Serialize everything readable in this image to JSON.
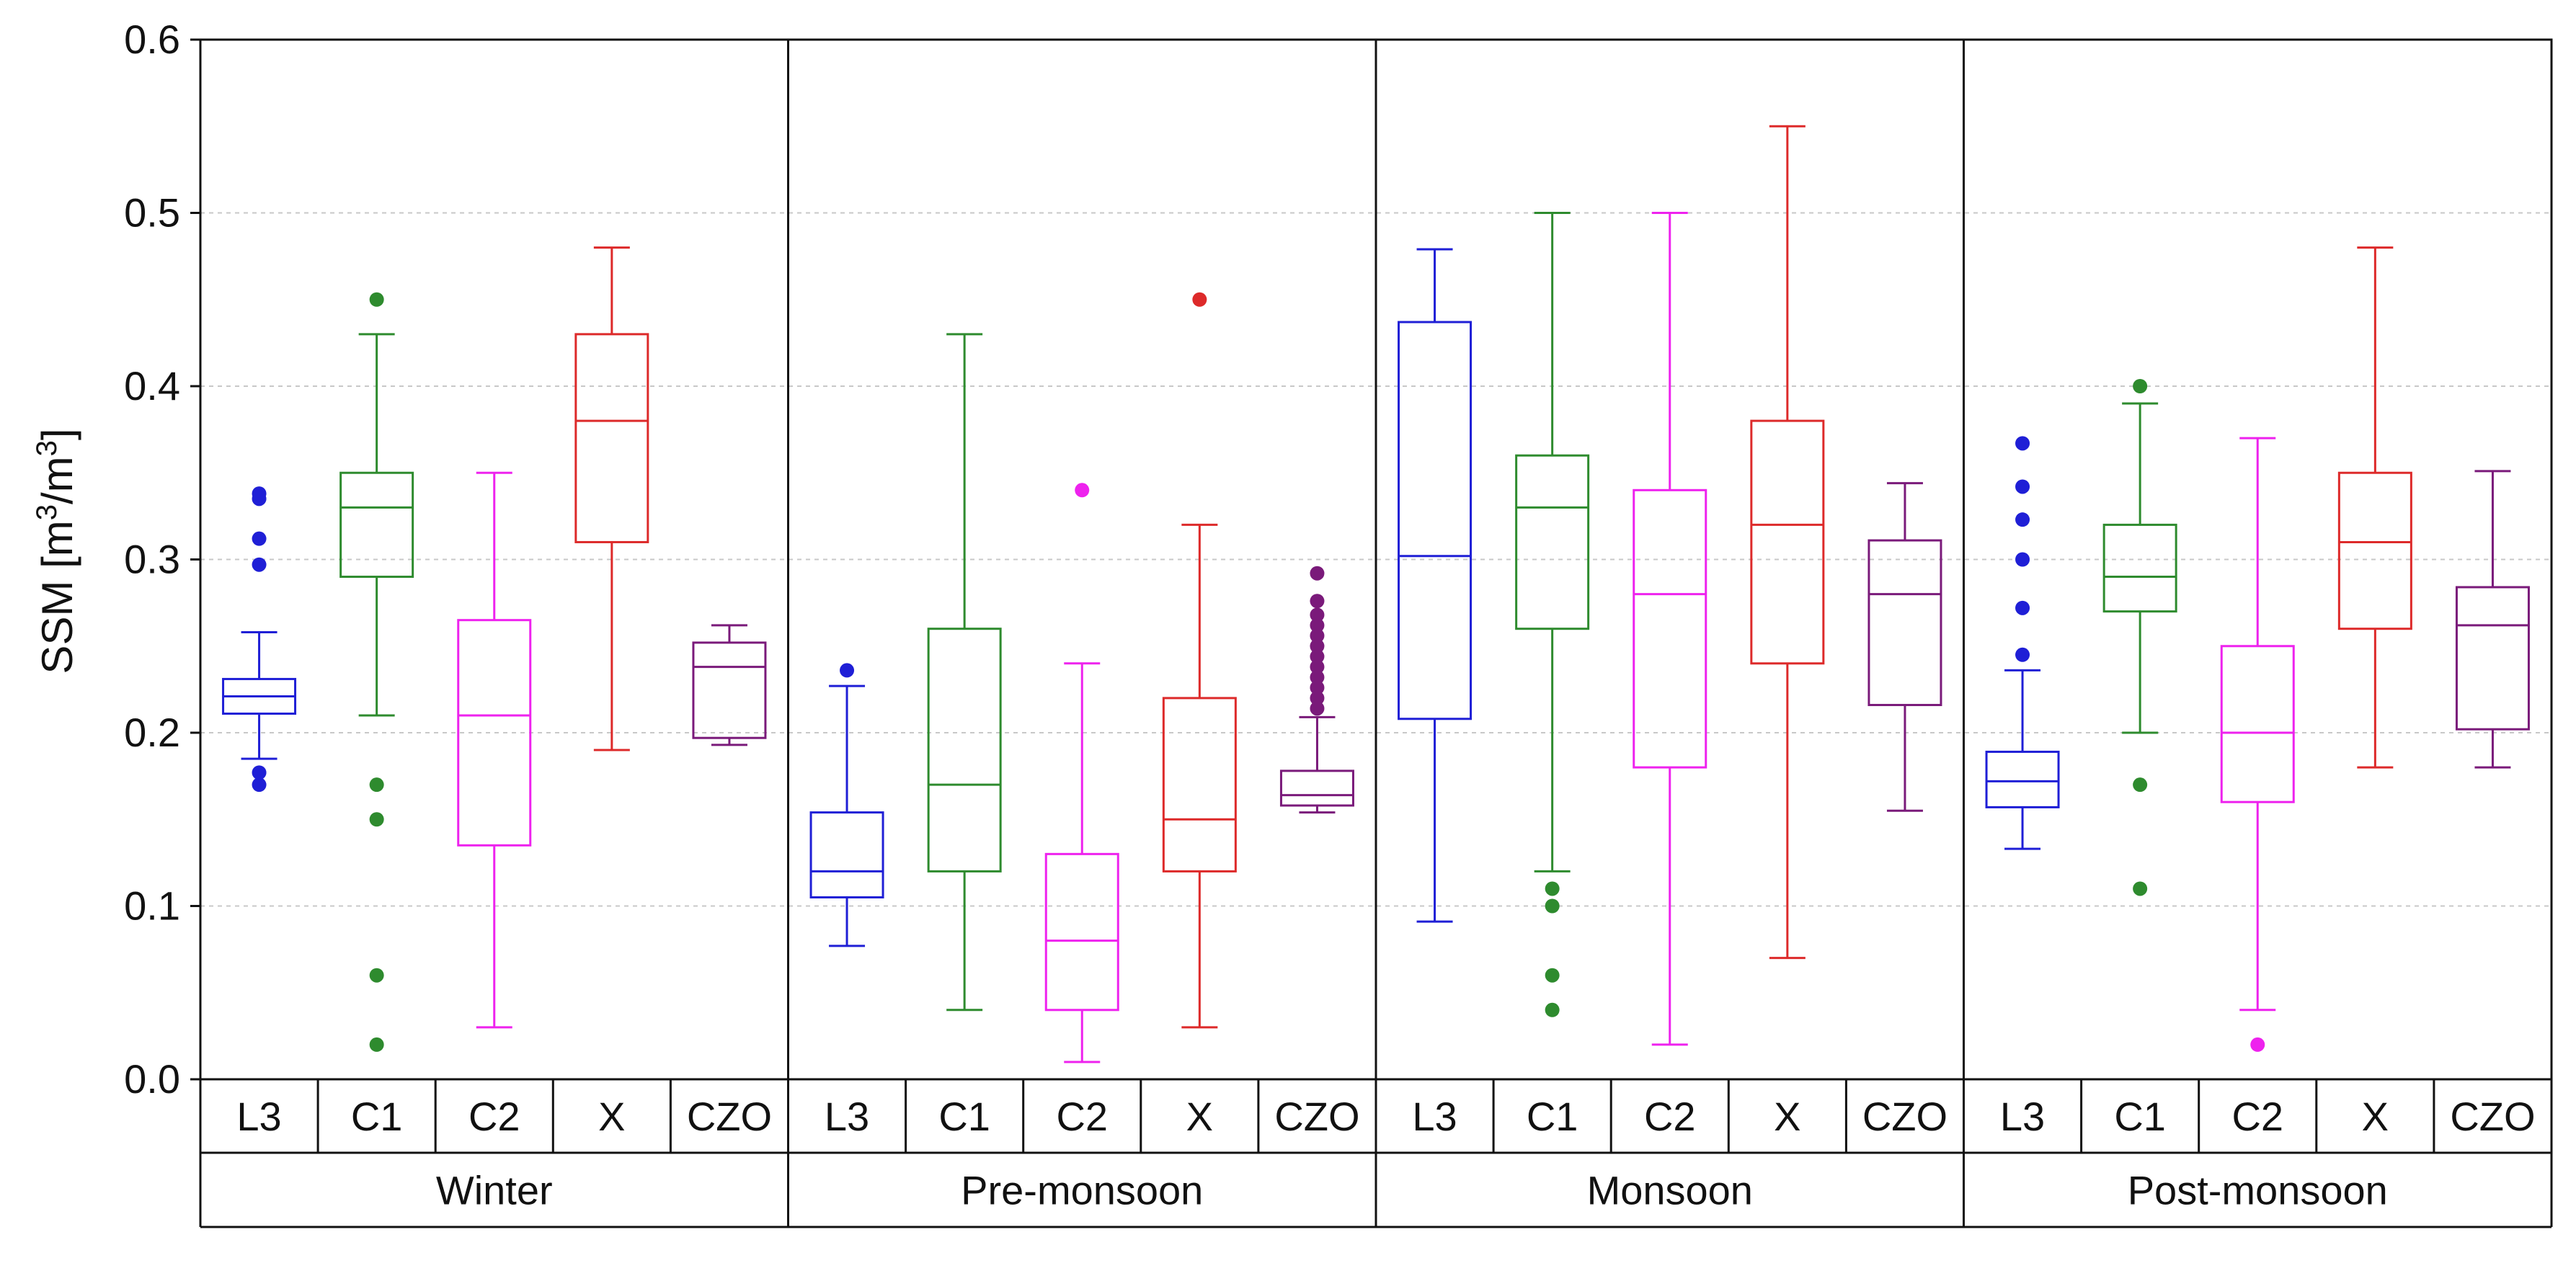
{
  "chart_data": {
    "type": "boxplot",
    "title": "",
    "ylabel": {
      "prefix": "SSM [m",
      "sup1": "3",
      "mid": "/m",
      "sup2": "3",
      "suffix": "]"
    },
    "ylim": [
      0.0,
      0.6
    ],
    "yticks": [
      "0.0",
      "0.1",
      "0.2",
      "0.3",
      "0.4",
      "0.5",
      "0.6"
    ],
    "grid": true,
    "products": [
      "L3",
      "C1",
      "C2",
      "X",
      "CZO"
    ],
    "colors": {
      "L3": "#1f1fd6",
      "C1": "#2e8b2e",
      "C2": "#ee22ee",
      "X": "#dd2a2a",
      "CZO": "#7a1a7a"
    },
    "seasons": [
      {
        "name": "Winter",
        "boxes": [
          {
            "product": "L3",
            "whisker_low": 0.185,
            "q1": 0.211,
            "median": 0.221,
            "q3": 0.231,
            "whisker_high": 0.258,
            "outliers": [
              0.17,
              0.177,
              0.297,
              0.312,
              0.335,
              0.338
            ]
          },
          {
            "product": "C1",
            "whisker_low": 0.21,
            "q1": 0.29,
            "median": 0.33,
            "q3": 0.35,
            "whisker_high": 0.43,
            "outliers": [
              0.02,
              0.06,
              0.15,
              0.17,
              0.45
            ]
          },
          {
            "product": "C2",
            "whisker_low": 0.03,
            "q1": 0.135,
            "median": 0.21,
            "q3": 0.265,
            "whisker_high": 0.35,
            "outliers": []
          },
          {
            "product": "X",
            "whisker_low": 0.19,
            "q1": 0.31,
            "median": 0.38,
            "q3": 0.43,
            "whisker_high": 0.48,
            "outliers": []
          },
          {
            "product": "CZO",
            "whisker_low": 0.193,
            "q1": 0.197,
            "median": 0.238,
            "q3": 0.252,
            "whisker_high": 0.262,
            "outliers": []
          }
        ]
      },
      {
        "name": "Pre-monsoon",
        "boxes": [
          {
            "product": "L3",
            "whisker_low": 0.077,
            "q1": 0.105,
            "median": 0.12,
            "q3": 0.154,
            "whisker_high": 0.227,
            "outliers": [
              0.236
            ]
          },
          {
            "product": "C1",
            "whisker_low": 0.04,
            "q1": 0.12,
            "median": 0.17,
            "q3": 0.26,
            "whisker_high": 0.43,
            "outliers": []
          },
          {
            "product": "C2",
            "whisker_low": 0.01,
            "q1": 0.04,
            "median": 0.08,
            "q3": 0.13,
            "whisker_high": 0.24,
            "outliers": [
              0.34
            ]
          },
          {
            "product": "X",
            "whisker_low": 0.03,
            "q1": 0.12,
            "median": 0.15,
            "q3": 0.22,
            "whisker_high": 0.32,
            "outliers": [
              0.45
            ]
          },
          {
            "product": "CZO",
            "whisker_low": 0.154,
            "q1": 0.158,
            "median": 0.164,
            "q3": 0.178,
            "whisker_high": 0.209,
            "outliers": [
              0.214,
              0.22,
              0.226,
              0.232,
              0.238,
              0.244,
              0.25,
              0.256,
              0.262,
              0.268,
              0.276,
              0.292
            ]
          }
        ]
      },
      {
        "name": "Monsoon",
        "boxes": [
          {
            "product": "L3",
            "whisker_low": 0.091,
            "q1": 0.208,
            "median": 0.302,
            "q3": 0.437,
            "whisker_high": 0.479,
            "outliers": []
          },
          {
            "product": "C1",
            "whisker_low": 0.12,
            "q1": 0.26,
            "median": 0.33,
            "q3": 0.36,
            "whisker_high": 0.5,
            "outliers": [
              0.04,
              0.06,
              0.1,
              0.11
            ]
          },
          {
            "product": "C2",
            "whisker_low": 0.02,
            "q1": 0.18,
            "median": 0.28,
            "q3": 0.34,
            "whisker_high": 0.5,
            "outliers": []
          },
          {
            "product": "X",
            "whisker_low": 0.07,
            "q1": 0.24,
            "median": 0.32,
            "q3": 0.38,
            "whisker_high": 0.55,
            "outliers": []
          },
          {
            "product": "CZO",
            "whisker_low": 0.155,
            "q1": 0.216,
            "median": 0.28,
            "q3": 0.311,
            "whisker_high": 0.344,
            "outliers": []
          }
        ]
      },
      {
        "name": "Post-monsoon",
        "boxes": [
          {
            "product": "L3",
            "whisker_low": 0.133,
            "q1": 0.157,
            "median": 0.172,
            "q3": 0.189,
            "whisker_high": 0.236,
            "outliers": [
              0.245,
              0.272,
              0.3,
              0.323,
              0.342,
              0.367
            ]
          },
          {
            "product": "C1",
            "whisker_low": 0.2,
            "q1": 0.27,
            "median": 0.29,
            "q3": 0.32,
            "whisker_high": 0.39,
            "outliers": [
              0.11,
              0.17,
              0.4
            ]
          },
          {
            "product": "C2",
            "whisker_low": 0.04,
            "q1": 0.16,
            "median": 0.2,
            "q3": 0.25,
            "whisker_high": 0.37,
            "outliers": [
              0.02
            ]
          },
          {
            "product": "X",
            "whisker_low": 0.18,
            "q1": 0.26,
            "median": 0.31,
            "q3": 0.35,
            "whisker_high": 0.48,
            "outliers": []
          },
          {
            "product": "CZO",
            "whisker_low": 0.18,
            "q1": 0.202,
            "median": 0.262,
            "q3": 0.284,
            "whisker_high": 0.351,
            "outliers": []
          }
        ]
      }
    ]
  }
}
